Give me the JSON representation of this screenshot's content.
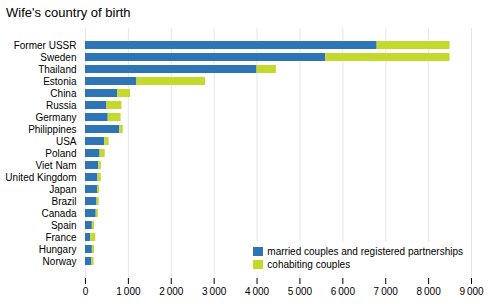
{
  "chart_data": {
    "type": "bar",
    "orientation": "horizontal",
    "stacked": true,
    "title": "Wife's country of birth",
    "categories": [
      "Norway",
      "Hungary",
      "France",
      "Spain",
      "Canada",
      "Brazil",
      "Japan",
      "United Kingdom",
      "Viet Nam",
      "Poland",
      "USA",
      "Philippines",
      "Germany",
      "Russia",
      "China",
      "Estonia",
      "Thailand",
      "Sweden",
      "Former USSR"
    ],
    "series": [
      {
        "name": "married couples and registered partnerships",
        "color": "#2E75B6",
        "values": [
          150,
          160,
          120,
          160,
          250,
          270,
          280,
          290,
          310,
          340,
          450,
          800,
          530,
          500,
          750,
          1200,
          4000,
          5600,
          6800
        ]
      },
      {
        "name": "cohabiting couples",
        "color": "#C5D92D",
        "values": [
          50,
          50,
          120,
          50,
          50,
          50,
          50,
          80,
          60,
          120,
          100,
          80,
          300,
          350,
          300,
          1600,
          450,
          2900,
          1700
        ]
      }
    ],
    "xlim": [
      0,
      9000
    ],
    "xticks": [
      0,
      {
        "value": 1000,
        "label": "1 000"
      },
      {
        "value": 2000,
        "label": "2 000"
      },
      {
        "value": 3000,
        "label": "3 000"
      },
      {
        "value": 4000,
        "label": "4 000"
      },
      {
        "value": 5000,
        "label": "5 000"
      },
      {
        "value": 6000,
        "label": "6 000"
      },
      {
        "value": 7000,
        "label": "7 000"
      },
      {
        "value": 8000,
        "label": "8 000"
      },
      {
        "value": 9000,
        "label": "9 000"
      }
    ],
    "grid": true,
    "legend": "lower right"
  }
}
